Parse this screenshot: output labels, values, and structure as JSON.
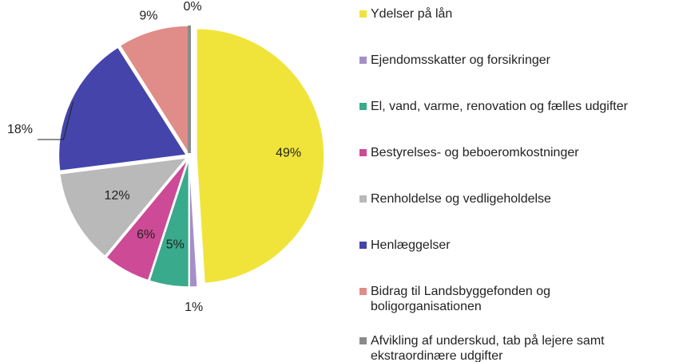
{
  "chart_data": {
    "type": "pie",
    "categories": [
      "Ydelser på lån",
      "Ejendomsskatter og forsikringer",
      "El, vand, varme, renovation og fælles udgifter",
      "Bestyrelses- og beboeromkostninger",
      "Renholdelse og vedligeholdelse",
      "Henlæggelser",
      "Bidrag til Landsbyggefonden og\nboligorganisationen",
      "Afvikling af underskud, tab på lejere samt\nekstraordinære udgifter"
    ],
    "values": [
      49,
      1,
      5,
      6,
      12,
      18,
      9,
      0
    ],
    "value_labels": [
      "49%",
      "1%",
      "5%",
      "6%",
      "12%",
      "18%",
      "9%",
      "0%"
    ],
    "colors": [
      "#f0e43a",
      "#a58fc9",
      "#3aaa8c",
      "#cc4a96",
      "#b9b9b9",
      "#4444aa",
      "#e08c88",
      "#8a8a8a"
    ],
    "legend": "right"
  }
}
